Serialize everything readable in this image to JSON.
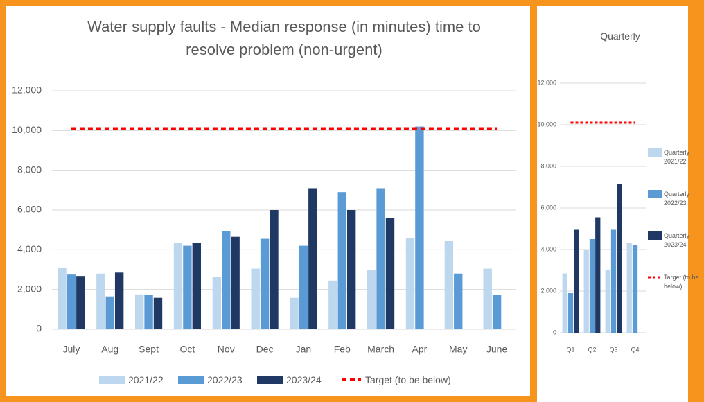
{
  "chart_data": [
    {
      "type": "bar",
      "title": "Water supply faults - Median response (in minutes) time to resolve problem (non-urgent)",
      "categories": [
        "July",
        "Aug",
        "Sept",
        "Oct",
        "Nov",
        "Dec",
        "Jan",
        "Feb",
        "March",
        "Apr",
        "May",
        "June"
      ],
      "series": [
        {
          "name": "2021/22",
          "color": "#bdd7ee",
          "values": [
            3100,
            2800,
            1750,
            4350,
            2650,
            3050,
            1580,
            2450,
            3000,
            4600,
            4450,
            3050
          ]
        },
        {
          "name": "2022/23",
          "color": "#5b9bd5",
          "values": [
            2750,
            1650,
            1720,
            4200,
            4950,
            4550,
            4200,
            6900,
            7100,
            10200,
            2800,
            1720
          ]
        },
        {
          "name": "2023/24",
          "color": "#1f3864",
          "values": [
            2680,
            2850,
            1580,
            4350,
            4650,
            6000,
            7100,
            6000,
            5600,
            null,
            null,
            null
          ]
        },
        {
          "name": "Target (to be below)",
          "color": "#ff0000",
          "style": "dashed",
          "values": [
            10100,
            10100,
            10100,
            10100,
            10100,
            10100,
            10100,
            10100,
            10100,
            10100,
            10100,
            10100
          ]
        }
      ],
      "ylim": [
        0,
        12000
      ],
      "yticks": [
        0,
        {
          "value": 2000,
          "label": "2,000"
        },
        {
          "value": 4000,
          "label": "4,000"
        },
        {
          "value": 6000,
          "label": "6,000"
        },
        {
          "value": 8000,
          "label": "8,000"
        },
        {
          "value": 10000,
          "label": "10,000"
        },
        {
          "value": 12000,
          "label": "12,000"
        }
      ],
      "grid": true,
      "legend": "bottom"
    },
    {
      "type": "bar",
      "title": "Quarterly",
      "categories": [
        "Q1",
        "Q2",
        "Q3",
        "Q4"
      ],
      "series": [
        {
          "name": "Quarterly 2021/22",
          "color": "#bdd7ee",
          "values": [
            2850,
            4000,
            3000,
            4300
          ]
        },
        {
          "name": "Quarterly 2022/23",
          "color": "#5b9bd5",
          "values": [
            1900,
            4500,
            4950,
            4200
          ]
        },
        {
          "name": "Quarterly 2023/24",
          "color": "#1f3864",
          "values": [
            4950,
            5550,
            7150,
            null
          ]
        },
        {
          "name": "Target (to be below)",
          "color": "#ff0000",
          "style": "dashed",
          "values": [
            10100,
            10100,
            10100,
            10100
          ]
        }
      ],
      "ylim": [
        0,
        12000
      ],
      "yticks": [
        0,
        {
          "value": 2000,
          "label": "2,000"
        },
        {
          "value": 4000,
          "label": "4,000"
        },
        {
          "value": 6000,
          "label": "6,000"
        },
        {
          "value": 8000,
          "label": "8,000"
        },
        {
          "value": 10000,
          "label": "10,000"
        },
        {
          "value": 12000,
          "label": "12,000"
        }
      ],
      "grid": true,
      "legend": "right"
    }
  ]
}
